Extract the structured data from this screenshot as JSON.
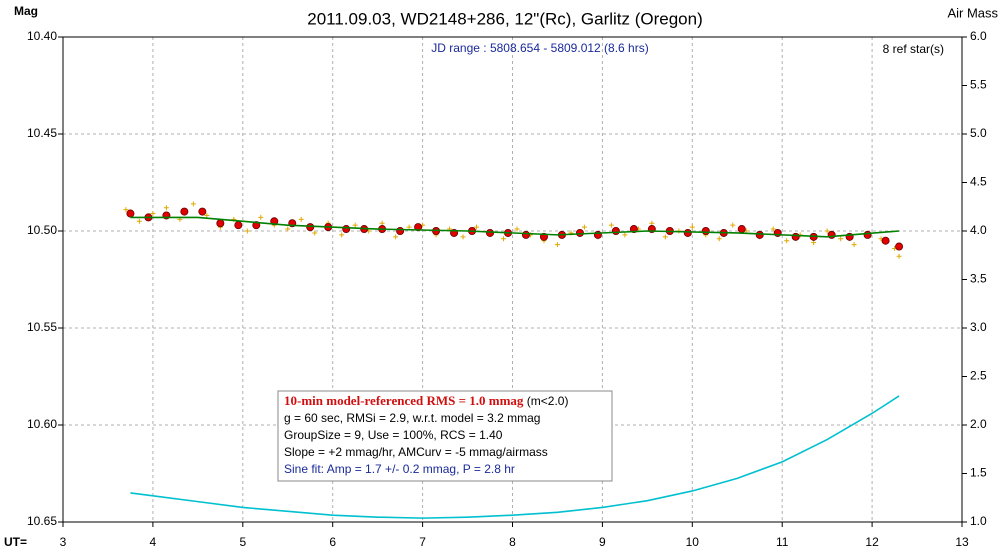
{
  "chart_data": {
    "type": "scatter",
    "title": "2011.09.03, WD2148+286, 12\"(Rc), Garlitz (Oregon)",
    "subtitle": "JD range : 5808.654 - 5809.012 (8.6 hrs)",
    "ref_stars": "8 ref star(s)",
    "y_label": "Mag",
    "y2_label": "Air Mass",
    "x_label": "UT=",
    "xlim": [
      3,
      13
    ],
    "xticks": [
      3,
      4,
      5,
      6,
      7,
      8,
      9,
      10,
      11,
      12,
      13
    ],
    "ylim": [
      10.4,
      10.65
    ],
    "y_inverted": true,
    "yticks": [
      {
        "value": 10.4,
        "label": "10.40"
      },
      10.45,
      {
        "value": 10.5,
        "label": "10.50"
      },
      10.55,
      {
        "value": 10.6,
        "label": "10.60"
      },
      10.65
    ],
    "y2lim": [
      1,
      6
    ],
    "y2ticks": [
      {
        "value": 1,
        "label": "1.0"
      },
      1.5,
      {
        "value": 2,
        "label": "2.0"
      },
      2.5,
      {
        "value": 3,
        "label": "3.0"
      },
      3.5,
      {
        "value": 4,
        "label": "4.0"
      },
      4.5,
      {
        "value": 5,
        "label": "5.0"
      },
      5.5,
      {
        "value": 6,
        "label": "6.0"
      }
    ],
    "grid": true,
    "series": [
      {
        "marker": "plus",
        "color": "#e0a800",
        "x": [
          3.7,
          3.85,
          4.0,
          4.15,
          4.3,
          4.45,
          4.6,
          4.75,
          4.9,
          5.05,
          5.2,
          5.35,
          5.5,
          5.65,
          5.8,
          5.95,
          6.1,
          6.25,
          6.4,
          6.55,
          6.7,
          6.85,
          7.0,
          7.15,
          7.3,
          7.45,
          7.6,
          7.75,
          7.9,
          8.05,
          8.2,
          8.35,
          8.5,
          8.65,
          8.8,
          8.95,
          9.1,
          9.25,
          9.4,
          9.55,
          9.7,
          9.85,
          10.0,
          10.15,
          10.3,
          10.45,
          10.6,
          10.75,
          10.9,
          11.05,
          11.2,
          11.35,
          11.5,
          11.65,
          11.8,
          11.95,
          12.1,
          12.25,
          12.3
        ],
        "values": [
          10.489,
          10.495,
          10.491,
          10.488,
          10.494,
          10.486,
          10.492,
          10.498,
          10.494,
          10.5,
          10.493,
          10.497,
          10.499,
          10.494,
          10.501,
          10.496,
          10.502,
          10.497,
          10.5,
          10.496,
          10.503,
          10.498,
          10.497,
          10.502,
          10.499,
          10.503,
          10.498,
          10.501,
          10.504,
          10.499,
          10.502,
          10.505,
          10.507,
          10.501,
          10.498,
          10.503,
          10.497,
          10.502,
          10.499,
          10.496,
          10.503,
          10.5,
          10.498,
          10.502,
          10.504,
          10.497,
          10.5,
          10.503,
          10.499,
          10.505,
          10.502,
          10.506,
          10.5,
          10.504,
          10.507,
          10.501,
          10.504,
          10.509,
          10.513
        ]
      },
      {
        "marker": "circle",
        "color": "#e00000",
        "x": [
          3.75,
          3.95,
          4.15,
          4.35,
          4.55,
          4.75,
          4.95,
          5.15,
          5.35,
          5.55,
          5.75,
          5.95,
          6.15,
          6.35,
          6.55,
          6.75,
          6.95,
          7.15,
          7.35,
          7.55,
          7.75,
          7.95,
          8.15,
          8.35,
          8.55,
          8.75,
          8.95,
          9.15,
          9.35,
          9.55,
          9.75,
          9.95,
          10.15,
          10.35,
          10.55,
          10.75,
          10.95,
          11.15,
          11.35,
          11.55,
          11.75,
          11.95,
          12.15,
          12.3
        ],
        "values": [
          10.491,
          10.493,
          10.492,
          10.49,
          10.49,
          10.496,
          10.497,
          10.497,
          10.495,
          10.496,
          10.498,
          10.498,
          10.499,
          10.499,
          10.499,
          10.5,
          10.498,
          10.5,
          10.501,
          10.5,
          10.501,
          10.501,
          10.502,
          10.503,
          10.502,
          10.501,
          10.502,
          10.5,
          10.499,
          10.499,
          10.5,
          10.501,
          10.5,
          10.501,
          10.499,
          10.502,
          10.501,
          10.503,
          10.503,
          10.502,
          10.503,
          10.502,
          10.505,
          10.508
        ]
      },
      {
        "marker": "line",
        "color": "#008000",
        "x": [
          3.75,
          4.5,
          5.5,
          6.5,
          7.5,
          8.5,
          9.5,
          10.5,
          11.5,
          12.3
        ],
        "values": [
          10.493,
          10.493,
          10.497,
          10.499,
          10.5,
          10.502,
          10.5,
          10.501,
          10.503,
          10.5
        ]
      },
      {
        "marker": "line",
        "color": "#00c0d0",
        "axis": "y2",
        "x": [
          3.75,
          4.0,
          4.5,
          5.0,
          5.5,
          6.0,
          6.5,
          7.0,
          7.5,
          8.0,
          8.5,
          9.0,
          9.5,
          10.0,
          10.5,
          11.0,
          11.5,
          12.0,
          12.3
        ],
        "values": [
          1.3,
          1.27,
          1.21,
          1.15,
          1.11,
          1.07,
          1.05,
          1.04,
          1.05,
          1.07,
          1.1,
          1.15,
          1.22,
          1.32,
          1.45,
          1.62,
          1.85,
          2.12,
          2.3
        ]
      }
    ],
    "stats_box": {
      "rms": "10-min model-referenced RMS = 1.0 mmag",
      "rms_note": "(m<2.0)",
      "lines": [
        "g = 60 sec, RMSi = 2.9, w.r.t. model = 3.2 mmag",
        "GroupSize = 9, Use = 100%, RCS = 1.40",
        "Slope = +2 mmag/hr, AMCurv = -5 mmag/airmass"
      ],
      "sine_fit": "Sine fit: Amp = 1.7 +/- 0.2 mmag, P = 2.8 hr"
    }
  }
}
